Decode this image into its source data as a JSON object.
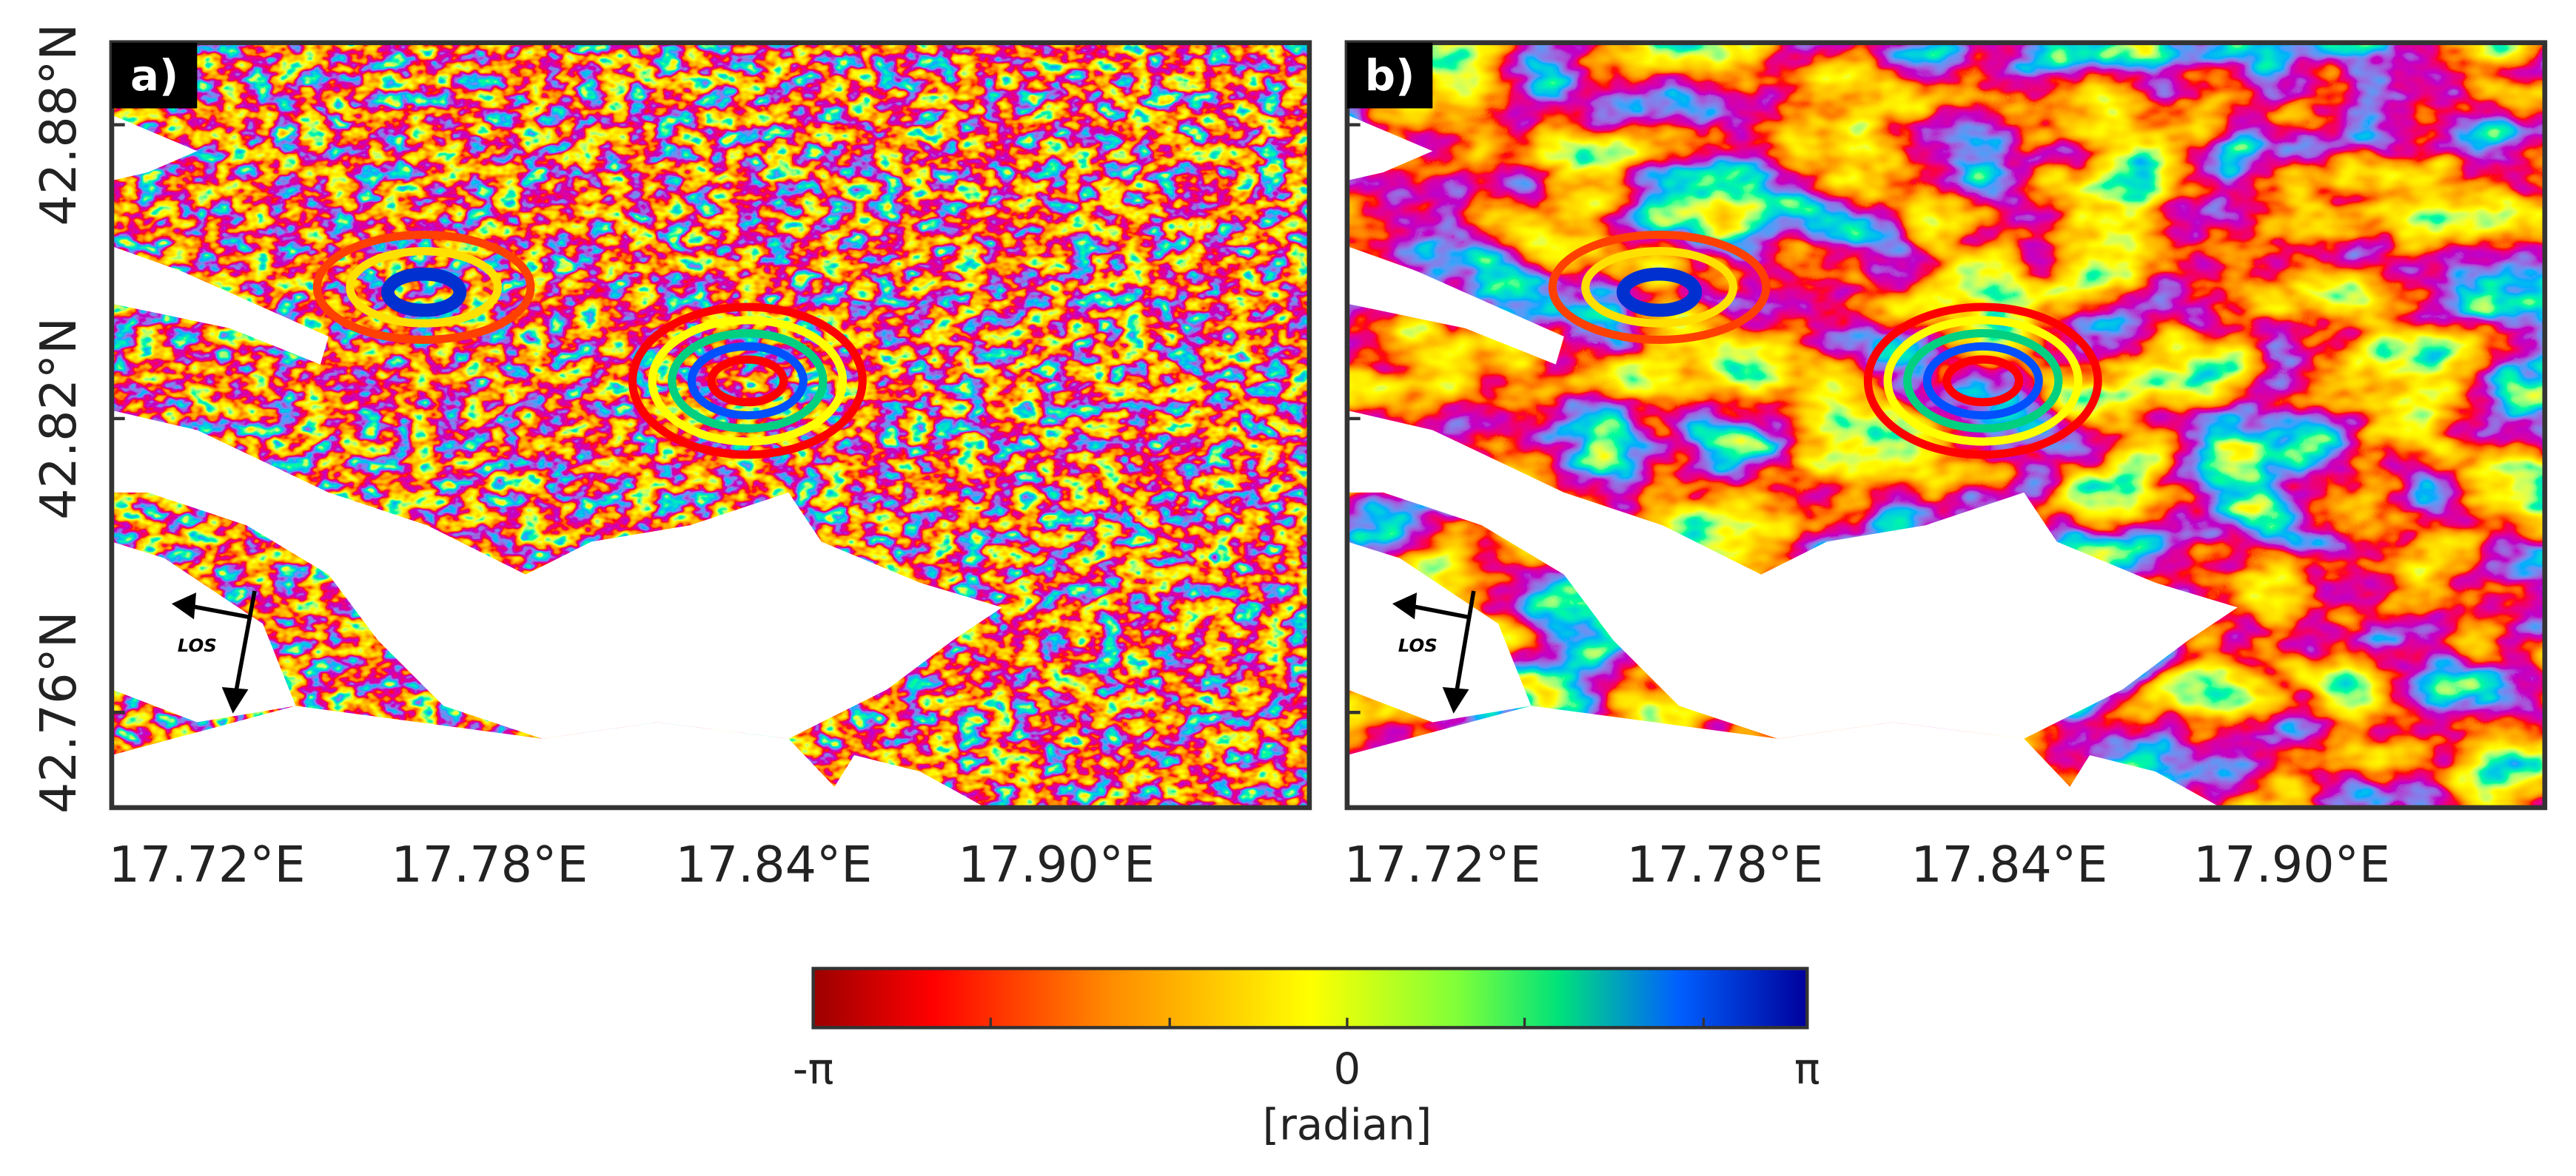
{
  "panels": [
    {
      "label": "a)"
    },
    {
      "label": "b)"
    }
  ],
  "axes": {
    "y_tick_labels": [
      "42.88°N",
      "42.82°N",
      "42.76°N"
    ],
    "x_tick_labels": [
      "17.72°E",
      "17.78°E",
      "17.84°E",
      "17.90°E"
    ]
  },
  "los_label": "LOS",
  "colorbar": {
    "tick_labels": [
      "-π",
      "0",
      "π"
    ],
    "unit": "[radian]"
  }
}
